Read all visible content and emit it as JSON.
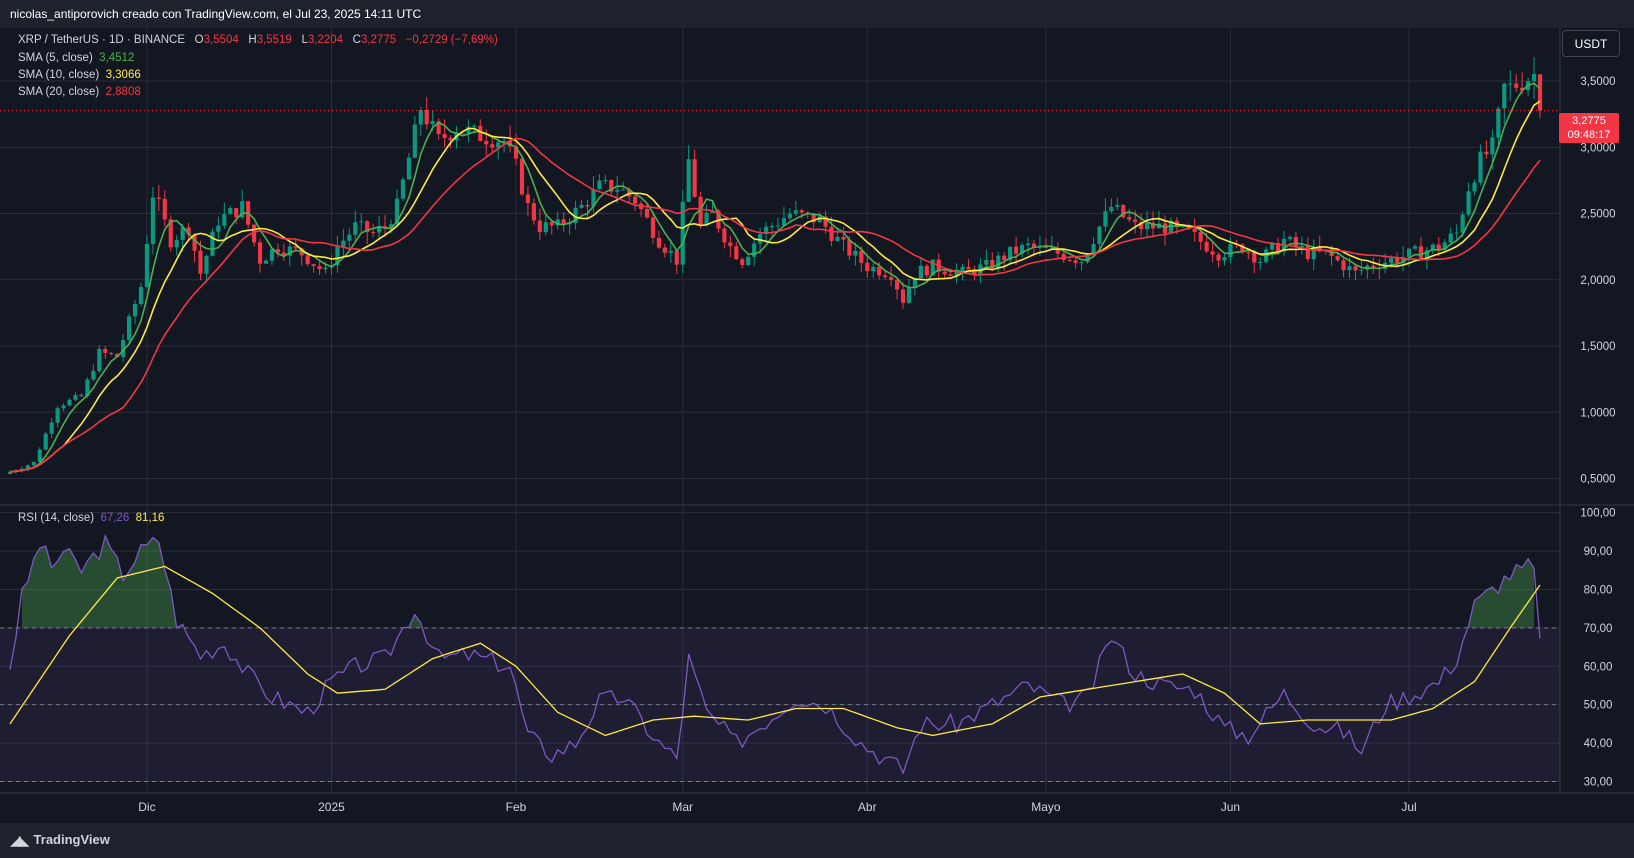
{
  "header": {
    "attribution": "nicolas_antiporovich creado con TradingView.com, el Jul 23, 2025 14:11 UTC"
  },
  "symbol_bar": {
    "title": "XRP / TetherUS · 1D · BINANCE",
    "o_label": "O",
    "o_value": "3,5504",
    "h_label": "H",
    "h_value": "3,5519",
    "l_label": "L",
    "l_value": "3,2204",
    "c_label": "C",
    "c_value": "3,2775",
    "change": "−0,2729 (−7,69%)"
  },
  "indicators": [
    {
      "label": "SMA (5, close)",
      "value": "3,4512",
      "color": "#4caf50"
    },
    {
      "label": "SMA (10, close)",
      "value": "3,3066",
      "color": "#ffeb3b"
    },
    {
      "label": "SMA (20, close)",
      "value": "2,8808",
      "color": "#f23645"
    }
  ],
  "rsi_legend": {
    "label": "RSI (14, close)",
    "rsi_value": "67,26",
    "ma_value": "81,16",
    "rsi_color": "#7e57c2",
    "ma_color": "#ffeb3b"
  },
  "currency_button": "USDT",
  "last_price_tag": {
    "price": "3,2775",
    "countdown": "09:48:17",
    "color": "#f23645"
  },
  "footer": {
    "brand": "TradingView",
    "logo_icon": "tradingview-logo-icon"
  },
  "colors": {
    "background": "#1e222d",
    "up": "#089981",
    "down": "#f23645",
    "grid": "#2a2e39"
  },
  "chart_data": [
    {
      "type": "candlestick",
      "title": "XRP / TetherUS · 1D · BINANCE",
      "ylim": [
        0.3,
        3.9
      ],
      "y_ticks": [
        "3,5000",
        "3,0000",
        "2,5000",
        "2,0000",
        "1,5000",
        "1,0000",
        "0,5000"
      ],
      "y_tick_values": [
        3.5,
        3.0,
        2.5,
        2.0,
        1.5,
        1.0,
        0.5
      ],
      "x_ticks": [
        "Dic",
        "2025",
        "Feb",
        "Mar",
        "Abr",
        "Mayo",
        "Jun",
        "Jul"
      ],
      "x_tick_dates": [
        "2024-12-01",
        "2025-01-01",
        "2025-02-01",
        "2025-03-01",
        "2025-04-01",
        "2025-05-01",
        "2025-06-01",
        "2025-07-01"
      ],
      "x_range": [
        "2024-11-08",
        "2025-07-23"
      ],
      "close_anchors": [
        [
          "2024-11-08",
          0.55
        ],
        [
          "2024-11-12",
          0.62
        ],
        [
          "2024-11-16",
          1.05
        ],
        [
          "2024-11-20",
          1.12
        ],
        [
          "2024-11-23",
          1.45
        ],
        [
          "2024-11-26",
          1.42
        ],
        [
          "2024-11-30",
          1.95
        ],
        [
          "2024-12-02",
          2.65
        ],
        [
          "2024-12-03",
          2.55
        ],
        [
          "2024-12-05",
          2.3
        ],
        [
          "2024-12-08",
          2.4
        ],
        [
          "2024-12-10",
          2.05
        ],
        [
          "2024-12-13",
          2.45
        ],
        [
          "2024-12-17",
          2.55
        ],
        [
          "2024-12-20",
          2.15
        ],
        [
          "2024-12-23",
          2.25
        ],
        [
          "2024-12-27",
          2.2
        ],
        [
          "2024-12-31",
          2.05
        ],
        [
          "2025-01-02",
          2.25
        ],
        [
          "2025-01-05",
          2.4
        ],
        [
          "2025-01-08",
          2.35
        ],
        [
          "2025-01-10",
          2.4
        ],
        [
          "2025-01-12",
          2.55
        ],
        [
          "2025-01-15",
          3.1
        ],
        [
          "2025-01-16",
          3.3
        ],
        [
          "2025-01-19",
          3.05
        ],
        [
          "2025-01-22",
          3.15
        ],
        [
          "2025-01-25",
          3.1
        ],
        [
          "2025-01-30",
          3.05
        ],
        [
          "2025-02-01",
          2.85
        ],
        [
          "2025-02-03",
          2.55
        ],
        [
          "2025-02-05",
          2.4
        ],
        [
          "2025-02-08",
          2.4
        ],
        [
          "2025-02-12",
          2.55
        ],
        [
          "2025-02-15",
          2.7
        ],
        [
          "2025-02-18",
          2.7
        ],
        [
          "2025-02-21",
          2.6
        ],
        [
          "2025-02-25",
          2.3
        ],
        [
          "2025-02-28",
          2.15
        ],
        [
          "2025-03-02",
          2.9
        ],
        [
          "2025-03-04",
          2.4
        ],
        [
          "2025-03-06",
          2.5
        ],
        [
          "2025-03-09",
          2.25
        ],
        [
          "2025-03-11",
          2.15
        ],
        [
          "2025-03-14",
          2.35
        ],
        [
          "2025-03-19",
          2.5
        ],
        [
          "2025-03-24",
          2.45
        ],
        [
          "2025-03-28",
          2.25
        ],
        [
          "2025-04-01",
          2.1
        ],
        [
          "2025-04-05",
          2.05
        ],
        [
          "2025-04-07",
          1.85
        ],
        [
          "2025-04-09",
          2.05
        ],
        [
          "2025-04-12",
          2.1
        ],
        [
          "2025-04-17",
          2.05
        ],
        [
          "2025-04-21",
          2.1
        ],
        [
          "2025-04-25",
          2.2
        ],
        [
          "2025-04-28",
          2.25
        ],
        [
          "2025-05-03",
          2.2
        ],
        [
          "2025-05-07",
          2.15
        ],
        [
          "2025-05-10",
          2.4
        ],
        [
          "2025-05-12",
          2.55
        ],
        [
          "2025-05-16",
          2.4
        ],
        [
          "2025-05-21",
          2.4
        ],
        [
          "2025-05-25",
          2.35
        ],
        [
          "2025-05-30",
          2.2
        ],
        [
          "2025-06-03",
          2.25
        ],
        [
          "2025-06-06",
          2.15
        ],
        [
          "2025-06-10",
          2.3
        ],
        [
          "2025-06-14",
          2.2
        ],
        [
          "2025-06-17",
          2.2
        ],
        [
          "2025-06-22",
          2.05
        ],
        [
          "2025-06-24",
          2.1
        ],
        [
          "2025-06-28",
          2.15
        ],
        [
          "2025-07-02",
          2.2
        ],
        [
          "2025-07-06",
          2.25
        ],
        [
          "2025-07-09",
          2.35
        ],
        [
          "2025-07-11",
          2.7
        ],
        [
          "2025-07-13",
          2.9
        ],
        [
          "2025-07-15",
          3.0
        ],
        [
          "2025-07-17",
          3.45
        ],
        [
          "2025-07-18",
          3.45
        ],
        [
          "2025-07-20",
          3.5
        ],
        [
          "2025-07-22",
          3.55
        ],
        [
          "2025-07-23",
          3.28
        ]
      ],
      "last_candle": {
        "date": "2025-07-23",
        "open": 3.5504,
        "high": 3.5519,
        "low": 3.2204,
        "close": 3.2775
      },
      "overlays": [
        {
          "name": "SMA (5, close)",
          "period": 5,
          "color": "#4caf50"
        },
        {
          "name": "SMA (10, close)",
          "period": 10,
          "color": "#ffeb3b"
        },
        {
          "name": "SMA (20, close)",
          "period": 20,
          "color": "#f23645"
        }
      ],
      "last_price_line": 3.2775
    },
    {
      "type": "line",
      "title": "RSI (14, close)",
      "ylim": [
        27,
        102
      ],
      "y_ticks": [
        "100,00",
        "90,00",
        "80,00",
        "70,00",
        "60,00",
        "50,00",
        "40,00",
        "30,00"
      ],
      "y_tick_values": [
        100,
        90,
        80,
        70,
        60,
        50,
        40,
        30
      ],
      "levels": [
        70,
        50,
        30
      ],
      "rsi_anchors": [
        [
          "2024-11-08",
          60
        ],
        [
          "2024-11-10",
          78
        ],
        [
          "2024-11-13",
          92
        ],
        [
          "2024-11-15",
          86
        ],
        [
          "2024-11-17",
          90
        ],
        [
          "2024-11-20",
          85
        ],
        [
          "2024-11-24",
          92
        ],
        [
          "2024-11-27",
          84
        ],
        [
          "2024-11-30",
          90
        ],
        [
          "2024-12-03",
          93
        ],
        [
          "2024-12-06",
          72
        ],
        [
          "2024-12-10",
          63
        ],
        [
          "2024-12-14",
          66
        ],
        [
          "2024-12-18",
          58
        ],
        [
          "2024-12-22",
          52
        ],
        [
          "2024-12-28",
          48
        ],
        [
          "2025-01-01",
          56
        ],
        [
          "2025-01-05",
          60
        ],
        [
          "2025-01-10",
          62
        ],
        [
          "2025-01-15",
          75
        ],
        [
          "2025-01-19",
          62
        ],
        [
          "2025-01-24",
          63
        ],
        [
          "2025-01-31",
          60
        ],
        [
          "2025-02-03",
          42
        ],
        [
          "2025-02-07",
          37
        ],
        [
          "2025-02-11",
          40
        ],
        [
          "2025-02-15",
          51
        ],
        [
          "2025-02-19",
          52
        ],
        [
          "2025-02-25",
          40
        ],
        [
          "2025-02-28",
          36
        ],
        [
          "2025-03-02",
          62
        ],
        [
          "2025-03-05",
          48
        ],
        [
          "2025-03-10",
          40
        ],
        [
          "2025-03-16",
          47
        ],
        [
          "2025-03-20",
          52
        ],
        [
          "2025-03-25",
          50
        ],
        [
          "2025-03-31",
          40
        ],
        [
          "2025-04-07",
          33
        ],
        [
          "2025-04-10",
          45
        ],
        [
          "2025-04-16",
          45
        ],
        [
          "2025-04-22",
          50
        ],
        [
          "2025-04-28",
          55
        ],
        [
          "2025-05-04",
          50
        ],
        [
          "2025-05-08",
          52
        ],
        [
          "2025-05-12",
          68
        ],
        [
          "2025-05-16",
          58
        ],
        [
          "2025-05-21",
          55
        ],
        [
          "2025-05-26",
          54
        ],
        [
          "2025-05-31",
          44
        ],
        [
          "2025-06-04",
          42
        ],
        [
          "2025-06-10",
          53
        ],
        [
          "2025-06-15",
          45
        ],
        [
          "2025-06-20",
          43
        ],
        [
          "2025-06-23",
          38
        ],
        [
          "2025-06-27",
          50
        ],
        [
          "2025-07-02",
          53
        ],
        [
          "2025-07-06",
          56
        ],
        [
          "2025-07-09",
          62
        ],
        [
          "2025-07-12",
          76
        ],
        [
          "2025-07-15",
          80
        ],
        [
          "2025-07-18",
          84
        ],
        [
          "2025-07-21",
          86
        ],
        [
          "2025-07-22",
          85
        ],
        [
          "2025-07-23",
          67.26
        ]
      ],
      "ma_anchors": [
        [
          "2024-11-08",
          45
        ],
        [
          "2024-11-18",
          68
        ],
        [
          "2024-11-26",
          83
        ],
        [
          "2024-12-04",
          86
        ],
        [
          "2024-12-12",
          79
        ],
        [
          "2024-12-20",
          70
        ],
        [
          "2024-12-28",
          58
        ],
        [
          "2025-01-02",
          53
        ],
        [
          "2025-01-10",
          54
        ],
        [
          "2025-01-18",
          62
        ],
        [
          "2025-01-26",
          66
        ],
        [
          "2025-02-01",
          60
        ],
        [
          "2025-02-08",
          48
        ],
        [
          "2025-02-16",
          42
        ],
        [
          "2025-02-24",
          46
        ],
        [
          "2025-03-03",
          47
        ],
        [
          "2025-03-12",
          46
        ],
        [
          "2025-03-20",
          49
        ],
        [
          "2025-03-28",
          49
        ],
        [
          "2025-04-06",
          44
        ],
        [
          "2025-04-12",
          42
        ],
        [
          "2025-04-22",
          45
        ],
        [
          "2025-04-30",
          52
        ],
        [
          "2025-05-08",
          54
        ],
        [
          "2025-05-16",
          56
        ],
        [
          "2025-05-24",
          58
        ],
        [
          "2025-05-31",
          53
        ],
        [
          "2025-06-06",
          45
        ],
        [
          "2025-06-14",
          46
        ],
        [
          "2025-06-22",
          46
        ],
        [
          "2025-06-28",
          46
        ],
        [
          "2025-07-05",
          49
        ],
        [
          "2025-07-12",
          56
        ],
        [
          "2025-07-18",
          70
        ],
        [
          "2025-07-23",
          81.16
        ]
      ],
      "last_values": {
        "rsi": 67.26,
        "ma": 81.16
      }
    }
  ]
}
